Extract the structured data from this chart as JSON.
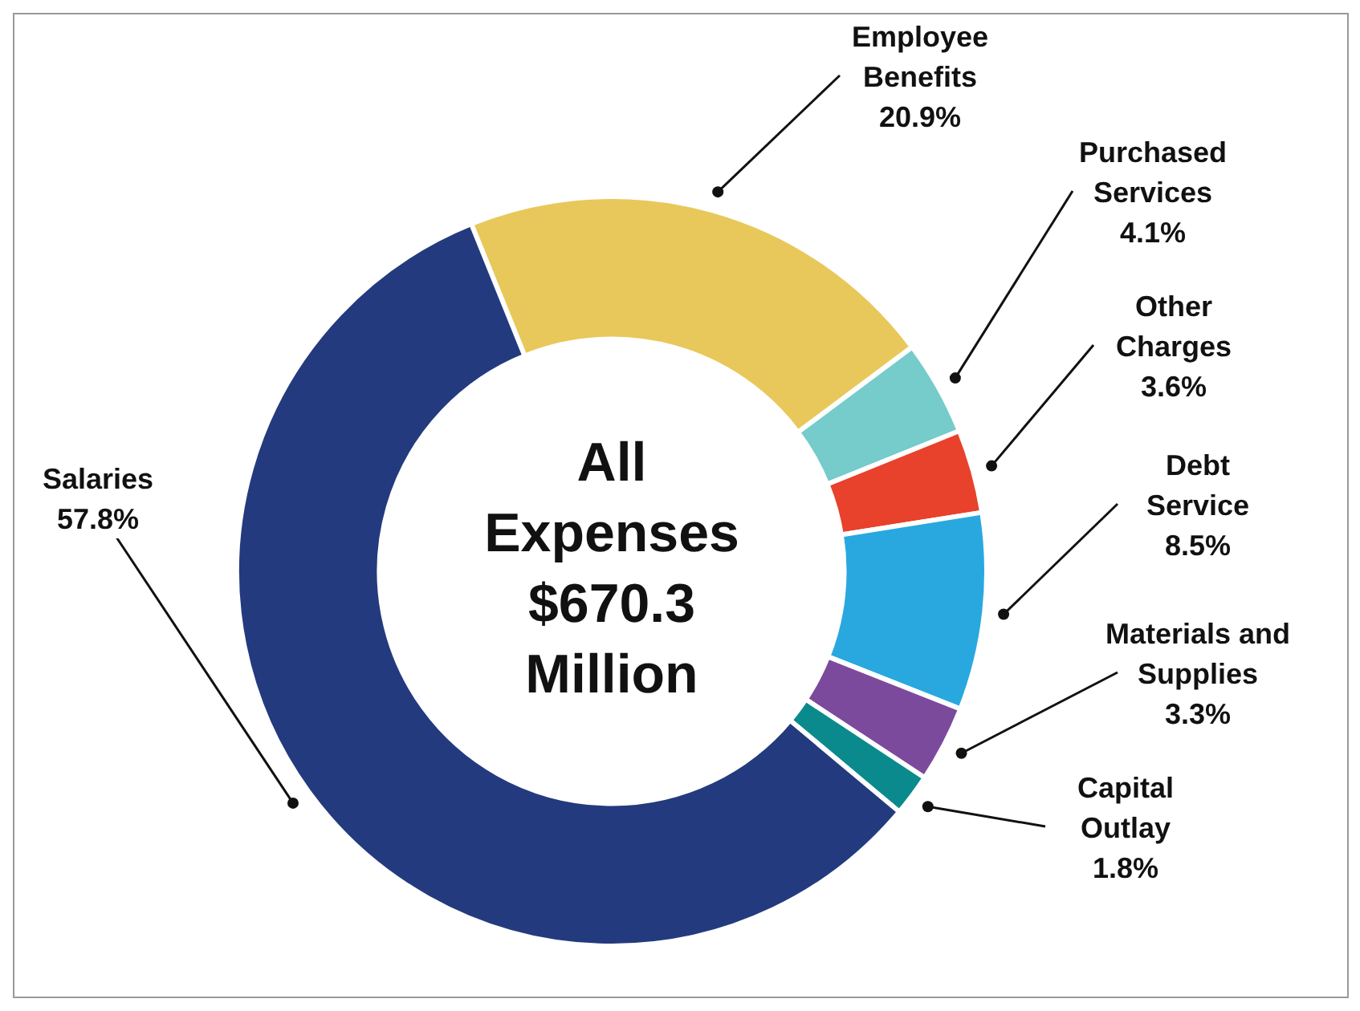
{
  "chart_data": {
    "type": "donut",
    "title": "All Expenses $670.3 Million",
    "categories": [
      "Employee Benefits",
      "Purchased Services",
      "Other Charges",
      "Debt Service",
      "Materials and Supplies",
      "Capital Outlay",
      "Salaries"
    ],
    "values": [
      20.9,
      4.1,
      3.6,
      8.5,
      3.3,
      1.8,
      57.8
    ],
    "colors": [
      "#e8c85a",
      "#76cbcb",
      "#e8412c",
      "#29a8e0",
      "#7c4a9c",
      "#0b8a8e",
      "#233a7e"
    ],
    "value_labels": [
      "20.9%",
      "4.1%",
      "3.6%",
      "8.5%",
      "3.3%",
      "1.8%",
      "57.8%"
    ],
    "legend": false
  }
}
